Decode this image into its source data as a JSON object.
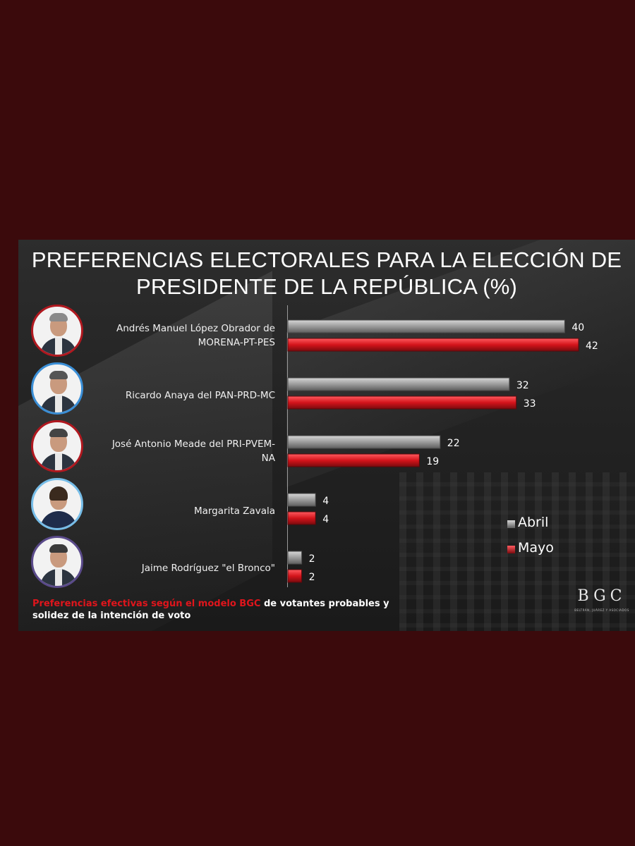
{
  "title_line1": "PREFERENCIAS ELECTORALES PARA LA ELECCIÓN DE",
  "title_line2": "PRESIDENTE DE LA REPÚBLICA (%)",
  "candidates": [
    {
      "line1": "Andrés Manuel López Obrador de",
      "line2": "MORENA-PT-PES"
    },
    {
      "line1": "Ricardo Anaya del PAN-PRD-MC",
      "line2": ""
    },
    {
      "line1": "José Antonio Meade del PRI-PVEM-",
      "line2": "NA"
    },
    {
      "line1": "Margarita Zavala",
      "line2": ""
    },
    {
      "line1": "Jaime Rodríguez \"el Bronco\"",
      "line2": ""
    }
  ],
  "legend": {
    "abril": "Abril",
    "mayo": "Mayo"
  },
  "footnote": {
    "red_part": "Preferencias efectivas según el modelo BGC",
    "white_part": " de votantes probables y",
    "line2": "solidez de la intención de voto"
  },
  "logo": {
    "text": "BGC",
    "subtitle": "BELTRÁN, JUÁREZ Y ASOCIADOS"
  },
  "colors": {
    "abril": "#9b9b9b",
    "mayo": "#d4141b"
  },
  "chart_data": {
    "type": "bar",
    "orientation": "horizontal",
    "categories": [
      "Andrés Manuel López Obrador de MORENA-PT-PES",
      "Ricardo Anaya del PAN-PRD-MC",
      "José Antonio Meade del PRI-PVEM-NA",
      "Margarita Zavala",
      "Jaime Rodríguez \"el Bronco\""
    ],
    "series": [
      {
        "name": "Abril",
        "values": [
          40,
          32,
          22,
          4,
          2
        ]
      },
      {
        "name": "Mayo",
        "values": [
          42,
          33,
          19,
          4,
          2
        ]
      }
    ],
    "title": "PREFERENCIAS ELECTORALES PARA LA ELECCIÓN DE PRESIDENTE DE LA REPÚBLICA (%)",
    "xlim": [
      0,
      45
    ],
    "data_labels": true,
    "grid": false,
    "legend_position": "right"
  }
}
